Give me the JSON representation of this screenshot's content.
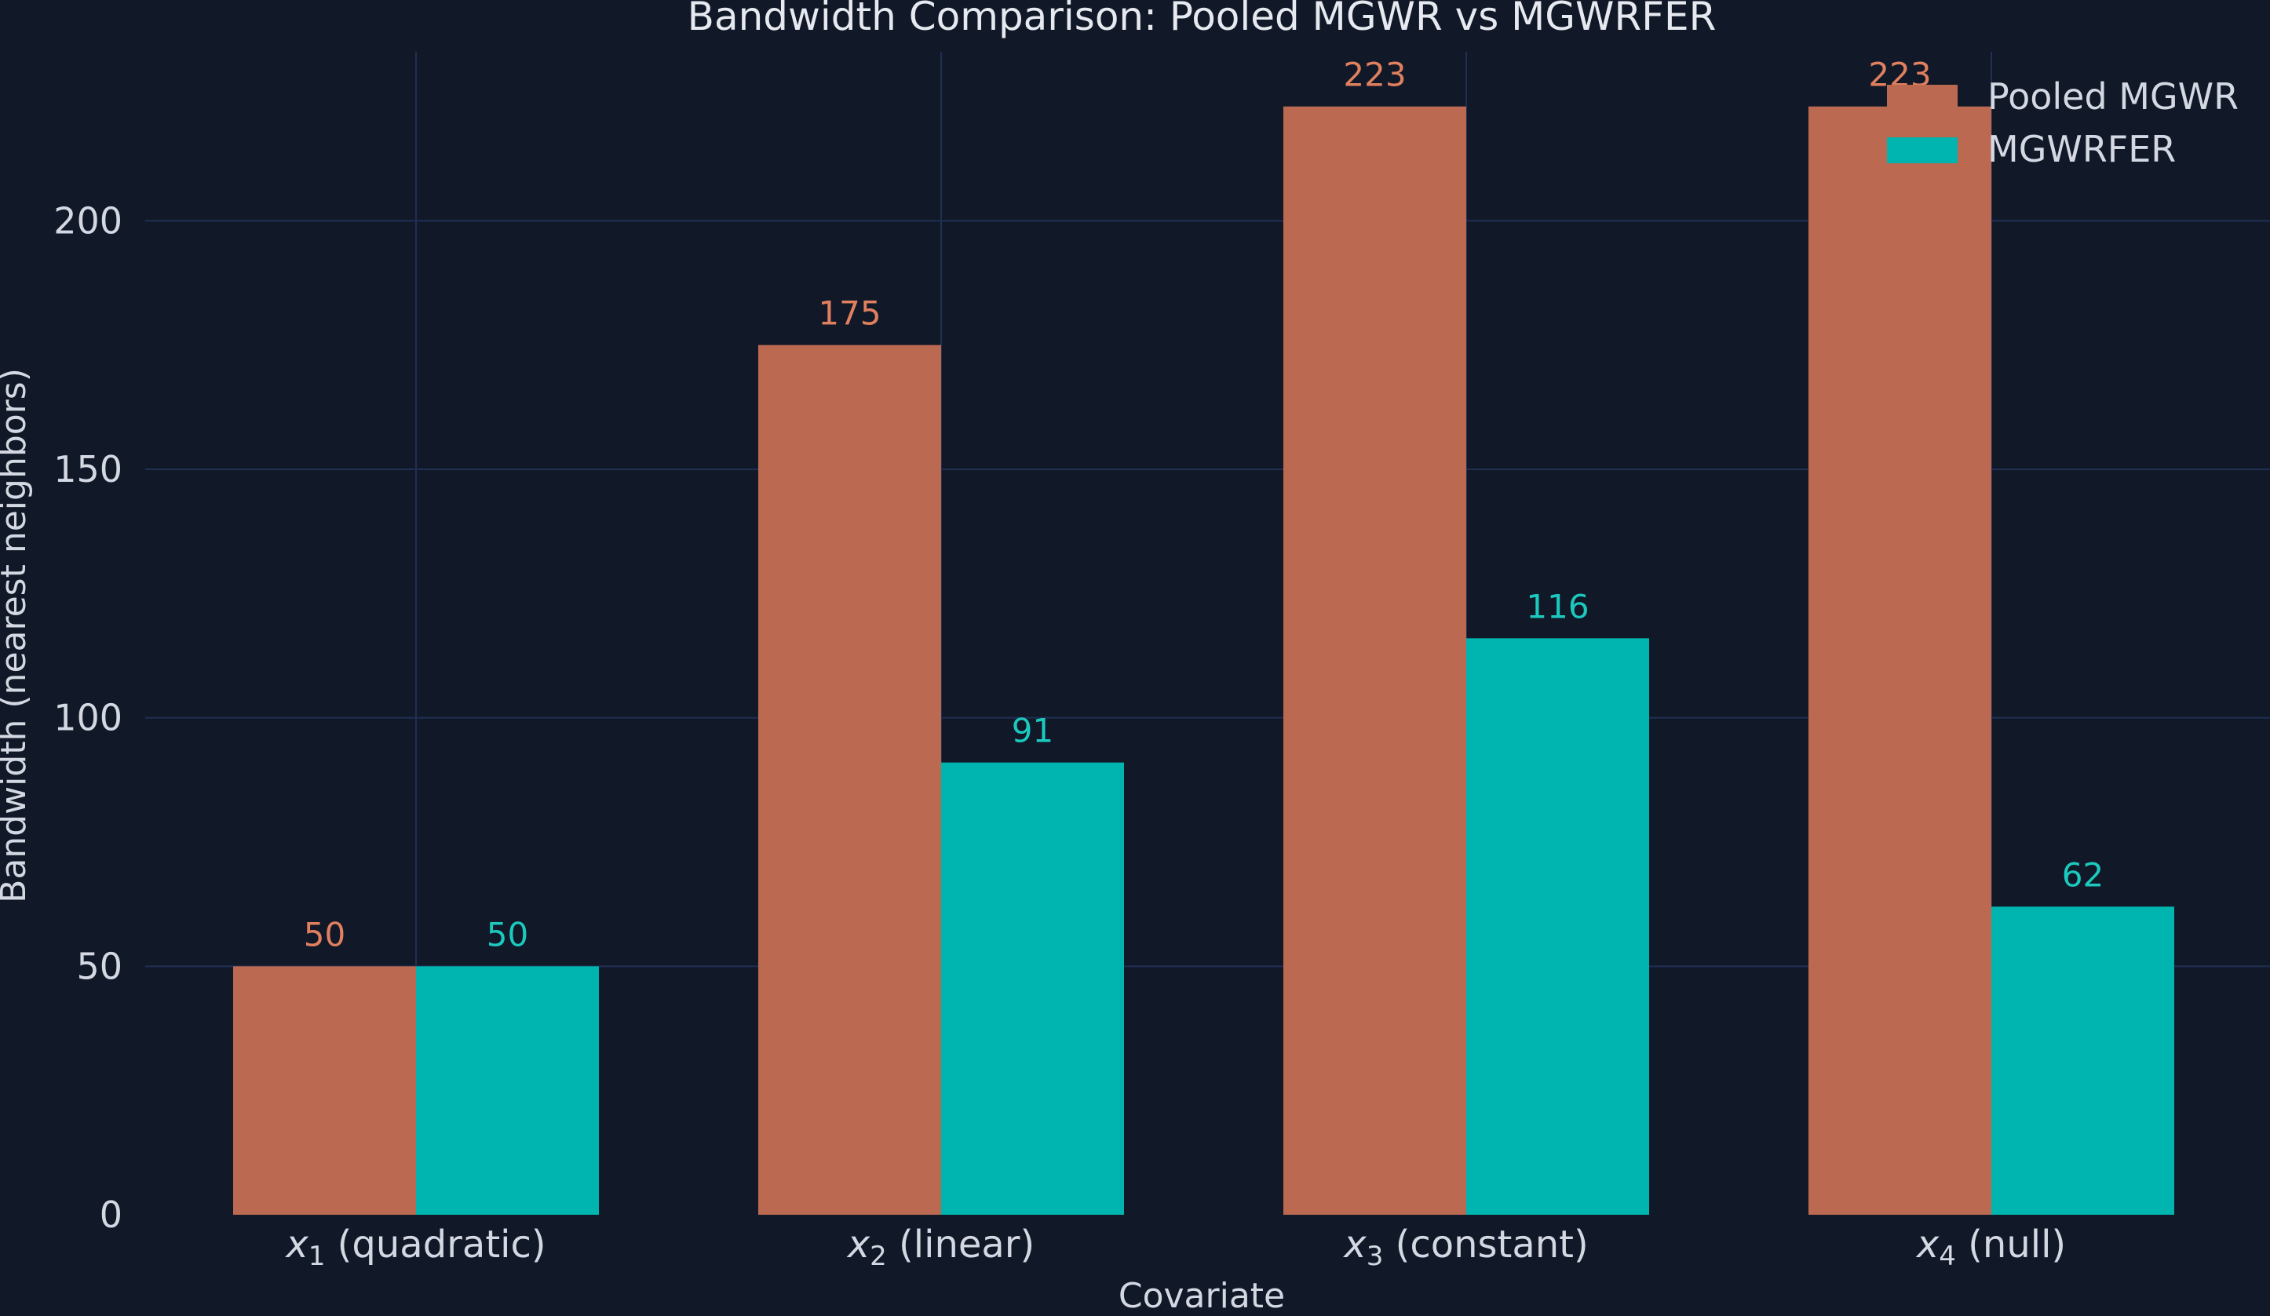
{
  "chart_data": {
    "type": "bar",
    "title": "Bandwidth Comparison: Pooled MGWR vs MGWRFER",
    "xlabel": "Covariate",
    "ylabel": "Bandwidth (nearest neighbors)",
    "ylim": [
      0,
      234
    ],
    "yticks": [
      0,
      50,
      100,
      150,
      200
    ],
    "grid": true,
    "legend_position": "top-right",
    "categories": [
      {
        "var": "x",
        "sub": "1",
        "desc": "(quadratic)"
      },
      {
        "var": "x",
        "sub": "2",
        "desc": "(linear)"
      },
      {
        "var": "x",
        "sub": "3",
        "desc": "(constant)"
      },
      {
        "var": "x",
        "sub": "4",
        "desc": "(null)"
      }
    ],
    "series": [
      {
        "name": "Pooled MGWR",
        "color": "#BB6950",
        "label_color": "#E0805F",
        "values": [
          50,
          175,
          223,
          223
        ]
      },
      {
        "name": "MGWRFER",
        "color": "#00B5AF",
        "label_color": "#1CC9BF",
        "values": [
          50,
          91,
          116,
          62
        ]
      }
    ],
    "colors": {
      "background": "#111827",
      "grid": "#1F3054",
      "text": "#D3D8E2",
      "title": "#E6E9EF"
    }
  }
}
